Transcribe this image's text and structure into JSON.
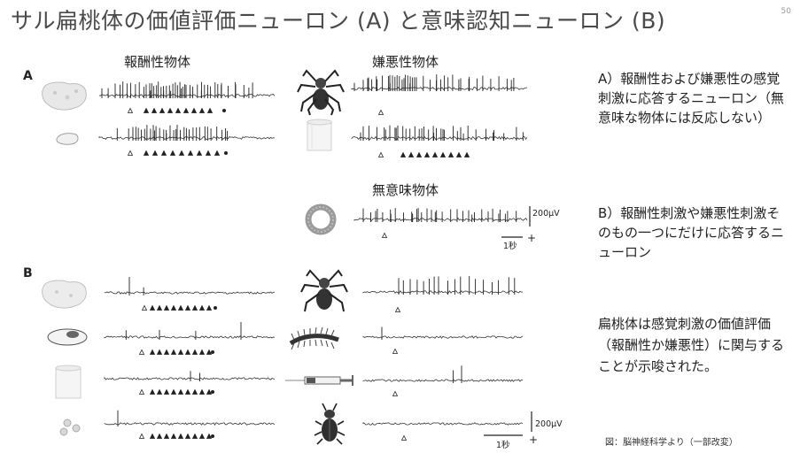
{
  "slide": {
    "title": "サル扁桃体の価値評価ニューロン (A) と意味認知ニューロン (B)",
    "page_number": "50"
  },
  "panel_a": {
    "label": "A",
    "reward_heading": "報酬性物体",
    "aversive_heading": "嫌悪性物体",
    "neutral_heading": "無意味物体"
  },
  "panel_b": {
    "label": "B"
  },
  "scale_bars": {
    "voltage": "200μV",
    "time": "1秒",
    "plus": "+"
  },
  "captions": {
    "a": "A）報酬性および嫌悪性の感覚刺激に応答するニューロン（無意味な物体には反応しない）",
    "b": "B）報酬性刺激や嫌悪性刺激そのもの一つにだけに応答するニューロン",
    "conclusion": "扁桃体は感覚刺激の価値評価（報酬性か嫌悪性）に関与することが示唆された。"
  },
  "credit": "図：脳神経科学より（一部改変）",
  "icons": [
    "cookie-icon",
    "spider-icon",
    "raisin-icon",
    "cylinder-icon",
    "ring-icon",
    "centipede-icon",
    "syringe-icon",
    "beetle-icon",
    "pellets-icon",
    "egg-icon"
  ]
}
